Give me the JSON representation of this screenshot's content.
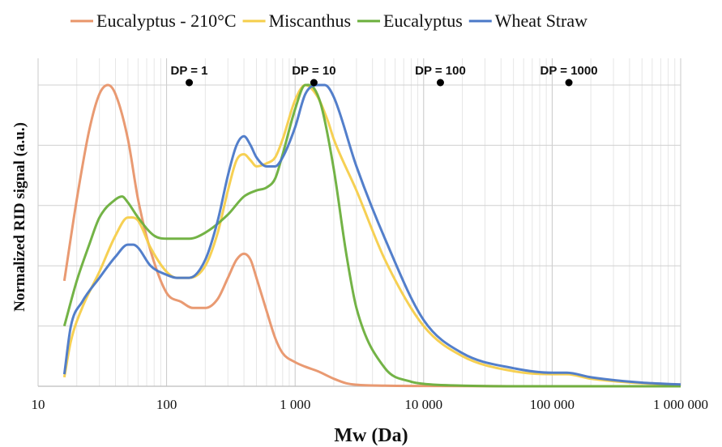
{
  "chart_data": {
    "type": "line",
    "title": "",
    "xlabel": "Mw (Da)",
    "ylabel": "Normalized RID signal (a.u.)",
    "x_scale": "log",
    "xlim": [
      10,
      1000000
    ],
    "ylim": [
      0,
      1.05
    ],
    "grid": true,
    "legend_position": "top",
    "x_tick_labels": [
      "10",
      "100",
      "1 000",
      "10 000",
      "100 000",
      "1 000 000"
    ],
    "x_tick_values": [
      10,
      100,
      1000,
      10000,
      100000,
      1000000
    ],
    "annotations": [
      {
        "label": "DP = 1",
        "x": 150,
        "y": 1.0
      },
      {
        "label": "DP = 10",
        "x": 1400,
        "y": 1.0
      },
      {
        "label": "DP = 100",
        "x": 13500,
        "y": 1.0
      },
      {
        "label": "DP = 1000",
        "x": 135000,
        "y": 1.0
      }
    ],
    "series": [
      {
        "name": "Eucalyptus - 210°C",
        "color": "#E8956A",
        "x": [
          16,
          20,
          25,
          30,
          35,
          40,
          50,
          60,
          75,
          100,
          130,
          160,
          200,
          250,
          300,
          350,
          400,
          450,
          500,
          600,
          700,
          800,
          1000,
          1200,
          1500,
          2000,
          2500,
          3000,
          5000,
          10000,
          100000,
          1000000
        ],
        "y": [
          0.35,
          0.62,
          0.85,
          0.97,
          1.0,
          0.97,
          0.82,
          0.62,
          0.45,
          0.31,
          0.28,
          0.26,
          0.26,
          0.29,
          0.36,
          0.42,
          0.44,
          0.42,
          0.36,
          0.25,
          0.16,
          0.11,
          0.08,
          0.065,
          0.05,
          0.025,
          0.01,
          0.005,
          0.002,
          0.001,
          0.0,
          0.0
        ]
      },
      {
        "name": "Miscanthus",
        "color": "#F5CE4A",
        "x": [
          16,
          18,
          22,
          30,
          40,
          50,
          60,
          75,
          100,
          120,
          150,
          200,
          250,
          300,
          350,
          400,
          450,
          500,
          600,
          700,
          800,
          1000,
          1200,
          1500,
          1800,
          2000,
          3000,
          5000,
          10000,
          20000,
          50000,
          100000,
          130000,
          200000,
          500000,
          1000000
        ],
        "y": [
          0.03,
          0.15,
          0.26,
          0.38,
          0.5,
          0.56,
          0.55,
          0.46,
          0.38,
          0.36,
          0.36,
          0.4,
          0.51,
          0.65,
          0.75,
          0.77,
          0.75,
          0.73,
          0.74,
          0.76,
          0.82,
          0.95,
          1.0,
          0.96,
          0.88,
          0.82,
          0.65,
          0.42,
          0.2,
          0.1,
          0.05,
          0.04,
          0.04,
          0.025,
          0.01,
          0.005
        ]
      },
      {
        "name": "Eucalyptus",
        "color": "#6BAF3C",
        "x": [
          16,
          20,
          25,
          30,
          40,
          45,
          50,
          60,
          80,
          100,
          150,
          200,
          300,
          400,
          500,
          600,
          700,
          800,
          1000,
          1200,
          1400,
          1600,
          2000,
          2500,
          3000,
          5000,
          8000,
          10000,
          20000,
          100000,
          1000000
        ],
        "y": [
          0.2,
          0.35,
          0.47,
          0.56,
          0.62,
          0.63,
          0.61,
          0.56,
          0.5,
          0.49,
          0.49,
          0.51,
          0.57,
          0.63,
          0.65,
          0.66,
          0.69,
          0.77,
          0.92,
          1.0,
          0.99,
          0.93,
          0.72,
          0.44,
          0.26,
          0.06,
          0.015,
          0.008,
          0.002,
          0.0,
          0.0
        ]
      },
      {
        "name": "Wheat Straw",
        "color": "#4A78C8",
        "x": [
          16,
          18,
          22,
          30,
          40,
          50,
          55,
          60,
          75,
          100,
          120,
          150,
          200,
          250,
          300,
          350,
          400,
          450,
          500,
          600,
          700,
          800,
          1000,
          1200,
          1500,
          1700,
          2000,
          3000,
          5000,
          10000,
          20000,
          50000,
          100000,
          130000,
          200000,
          500000,
          1000000
        ],
        "y": [
          0.04,
          0.2,
          0.28,
          0.36,
          0.43,
          0.47,
          0.47,
          0.46,
          0.4,
          0.37,
          0.36,
          0.36,
          0.42,
          0.55,
          0.7,
          0.8,
          0.83,
          0.8,
          0.76,
          0.73,
          0.73,
          0.76,
          0.86,
          0.97,
          1.0,
          1.0,
          0.96,
          0.73,
          0.49,
          0.22,
          0.11,
          0.06,
          0.045,
          0.045,
          0.03,
          0.012,
          0.006
        ]
      }
    ]
  }
}
